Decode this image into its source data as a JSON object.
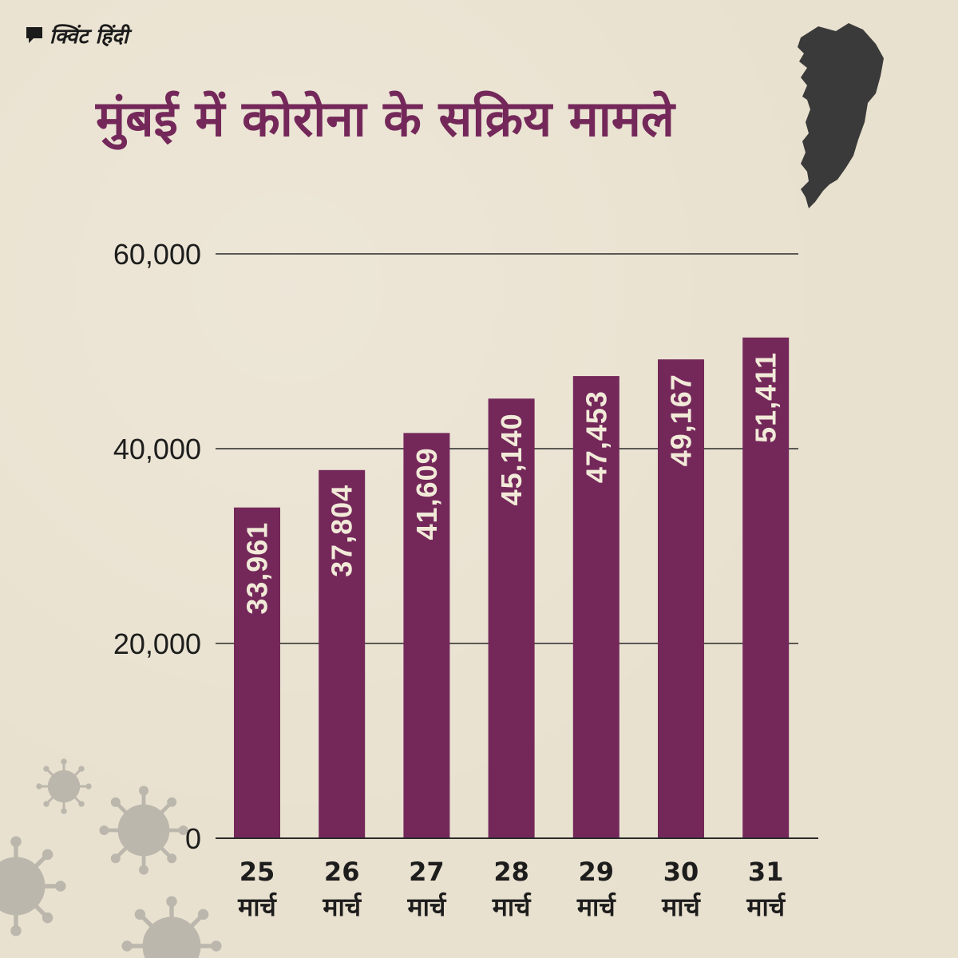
{
  "brand": {
    "logo_text": "क्विंट हिंदी"
  },
  "chart_data": {
    "type": "bar",
    "title": "मुंबई में कोरोना के सक्रिय मामले",
    "categories": [
      [
        "25",
        "मार्च"
      ],
      [
        "26",
        "मार्च"
      ],
      [
        "27",
        "मार्च"
      ],
      [
        "28",
        "मार्च"
      ],
      [
        "29",
        "मार्च"
      ],
      [
        "30",
        "मार्च"
      ],
      [
        "31",
        "मार्च"
      ]
    ],
    "values": [
      33961,
      37804,
      41609,
      45140,
      47453,
      49167,
      51411
    ],
    "value_labels": [
      "33,961",
      "37,804",
      "41,609",
      "45,140",
      "47,453",
      "49,167",
      "51,411"
    ],
    "y_ticks": [
      0,
      20000,
      40000,
      60000
    ],
    "y_tick_labels": [
      "0",
      "20,000",
      "40,000",
      "60,000"
    ],
    "ylim": [
      0,
      60000
    ],
    "grid": true,
    "bar_color": "#74285a",
    "xlabel": "",
    "ylabel": ""
  },
  "colors": {
    "background": "#e9e1cf",
    "title": "#74285a",
    "bar": "#74285a",
    "map": "#3a3a3a",
    "virus": "#b7b3aa",
    "axis": "#2a2a2a"
  },
  "icons": {
    "logo": "quint-speech-icon",
    "map": "mumbai-map-icon",
    "decoration": "coronavirus-icon"
  }
}
